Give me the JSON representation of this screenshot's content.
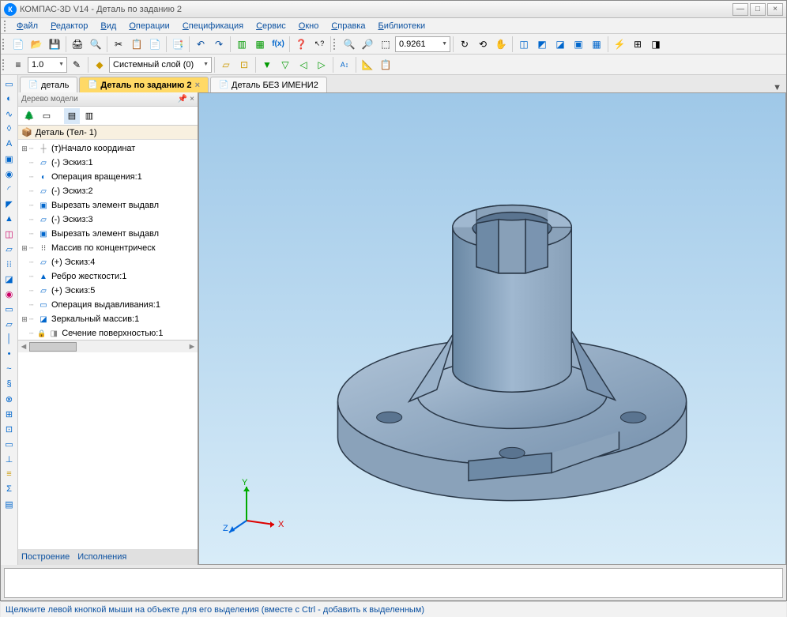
{
  "app": {
    "title": "КОМПАС-3D V14 - Деталь по заданию 2",
    "icon_letter": "К"
  },
  "menu": [
    "Файл",
    "Редактор",
    "Вид",
    "Операции",
    "Спецификация",
    "Сервис",
    "Окно",
    "Справка",
    "Библиотеки"
  ],
  "toolbar1": {
    "zoom_value": "0.9261"
  },
  "toolbar2": {
    "scale": "1.0",
    "layer": "Системный слой (0)"
  },
  "doc_tabs": [
    {
      "label": "деталь",
      "active": false
    },
    {
      "label": "Деталь по заданию 2",
      "active": true
    },
    {
      "label": "Деталь БЕЗ ИМЕНИ2",
      "active": false
    }
  ],
  "tree": {
    "panel_title": "Дерево модели",
    "root": "Деталь (Тел- 1)",
    "nodes": [
      {
        "exp": "⊞",
        "icon": "axes",
        "label": "(т)Начало координат"
      },
      {
        "exp": "",
        "icon": "sketch",
        "label": "(-) Эскиз:1"
      },
      {
        "exp": "",
        "icon": "revolve",
        "label": "Операция вращения:1"
      },
      {
        "exp": "",
        "icon": "sketch",
        "label": "(-) Эскиз:2"
      },
      {
        "exp": "",
        "icon": "cut",
        "label": "Вырезать элемент выдавл"
      },
      {
        "exp": "",
        "icon": "sketch",
        "label": "(-) Эскиз:3"
      },
      {
        "exp": "",
        "icon": "cut",
        "label": "Вырезать элемент выдавл"
      },
      {
        "exp": "⊞",
        "icon": "pattern",
        "label": "Массив по концентрическ"
      },
      {
        "exp": "",
        "icon": "sketch",
        "label": "(+) Эскиз:4"
      },
      {
        "exp": "",
        "icon": "rib",
        "label": "Ребро жесткости:1"
      },
      {
        "exp": "",
        "icon": "sketch",
        "label": "(+) Эскиз:5"
      },
      {
        "exp": "",
        "icon": "extrude",
        "label": "Операция выдавливания:1"
      },
      {
        "exp": "⊞",
        "icon": "mirror",
        "label": "Зеркальный массив:1"
      },
      {
        "exp": "",
        "icon": "section",
        "label": "Сечение поверхностью:1",
        "lock": true
      }
    ],
    "bottom_tabs": [
      "Построение",
      "Исполнения"
    ]
  },
  "axis": {
    "x": "X",
    "y": "Y",
    "z": "Z"
  },
  "status": "Щелкните левой кнопкой мыши на объекте для его выделения (вместе с Ctrl - добавить к выделенным)",
  "colors": {
    "accent": "#0a50a0",
    "active_tab": "#ffd966",
    "viewport_top": "#9fc8e8",
    "viewport_bottom": "#d8ecf8",
    "model_fill": "#8fa8c0",
    "model_stroke": "#2a3848"
  }
}
